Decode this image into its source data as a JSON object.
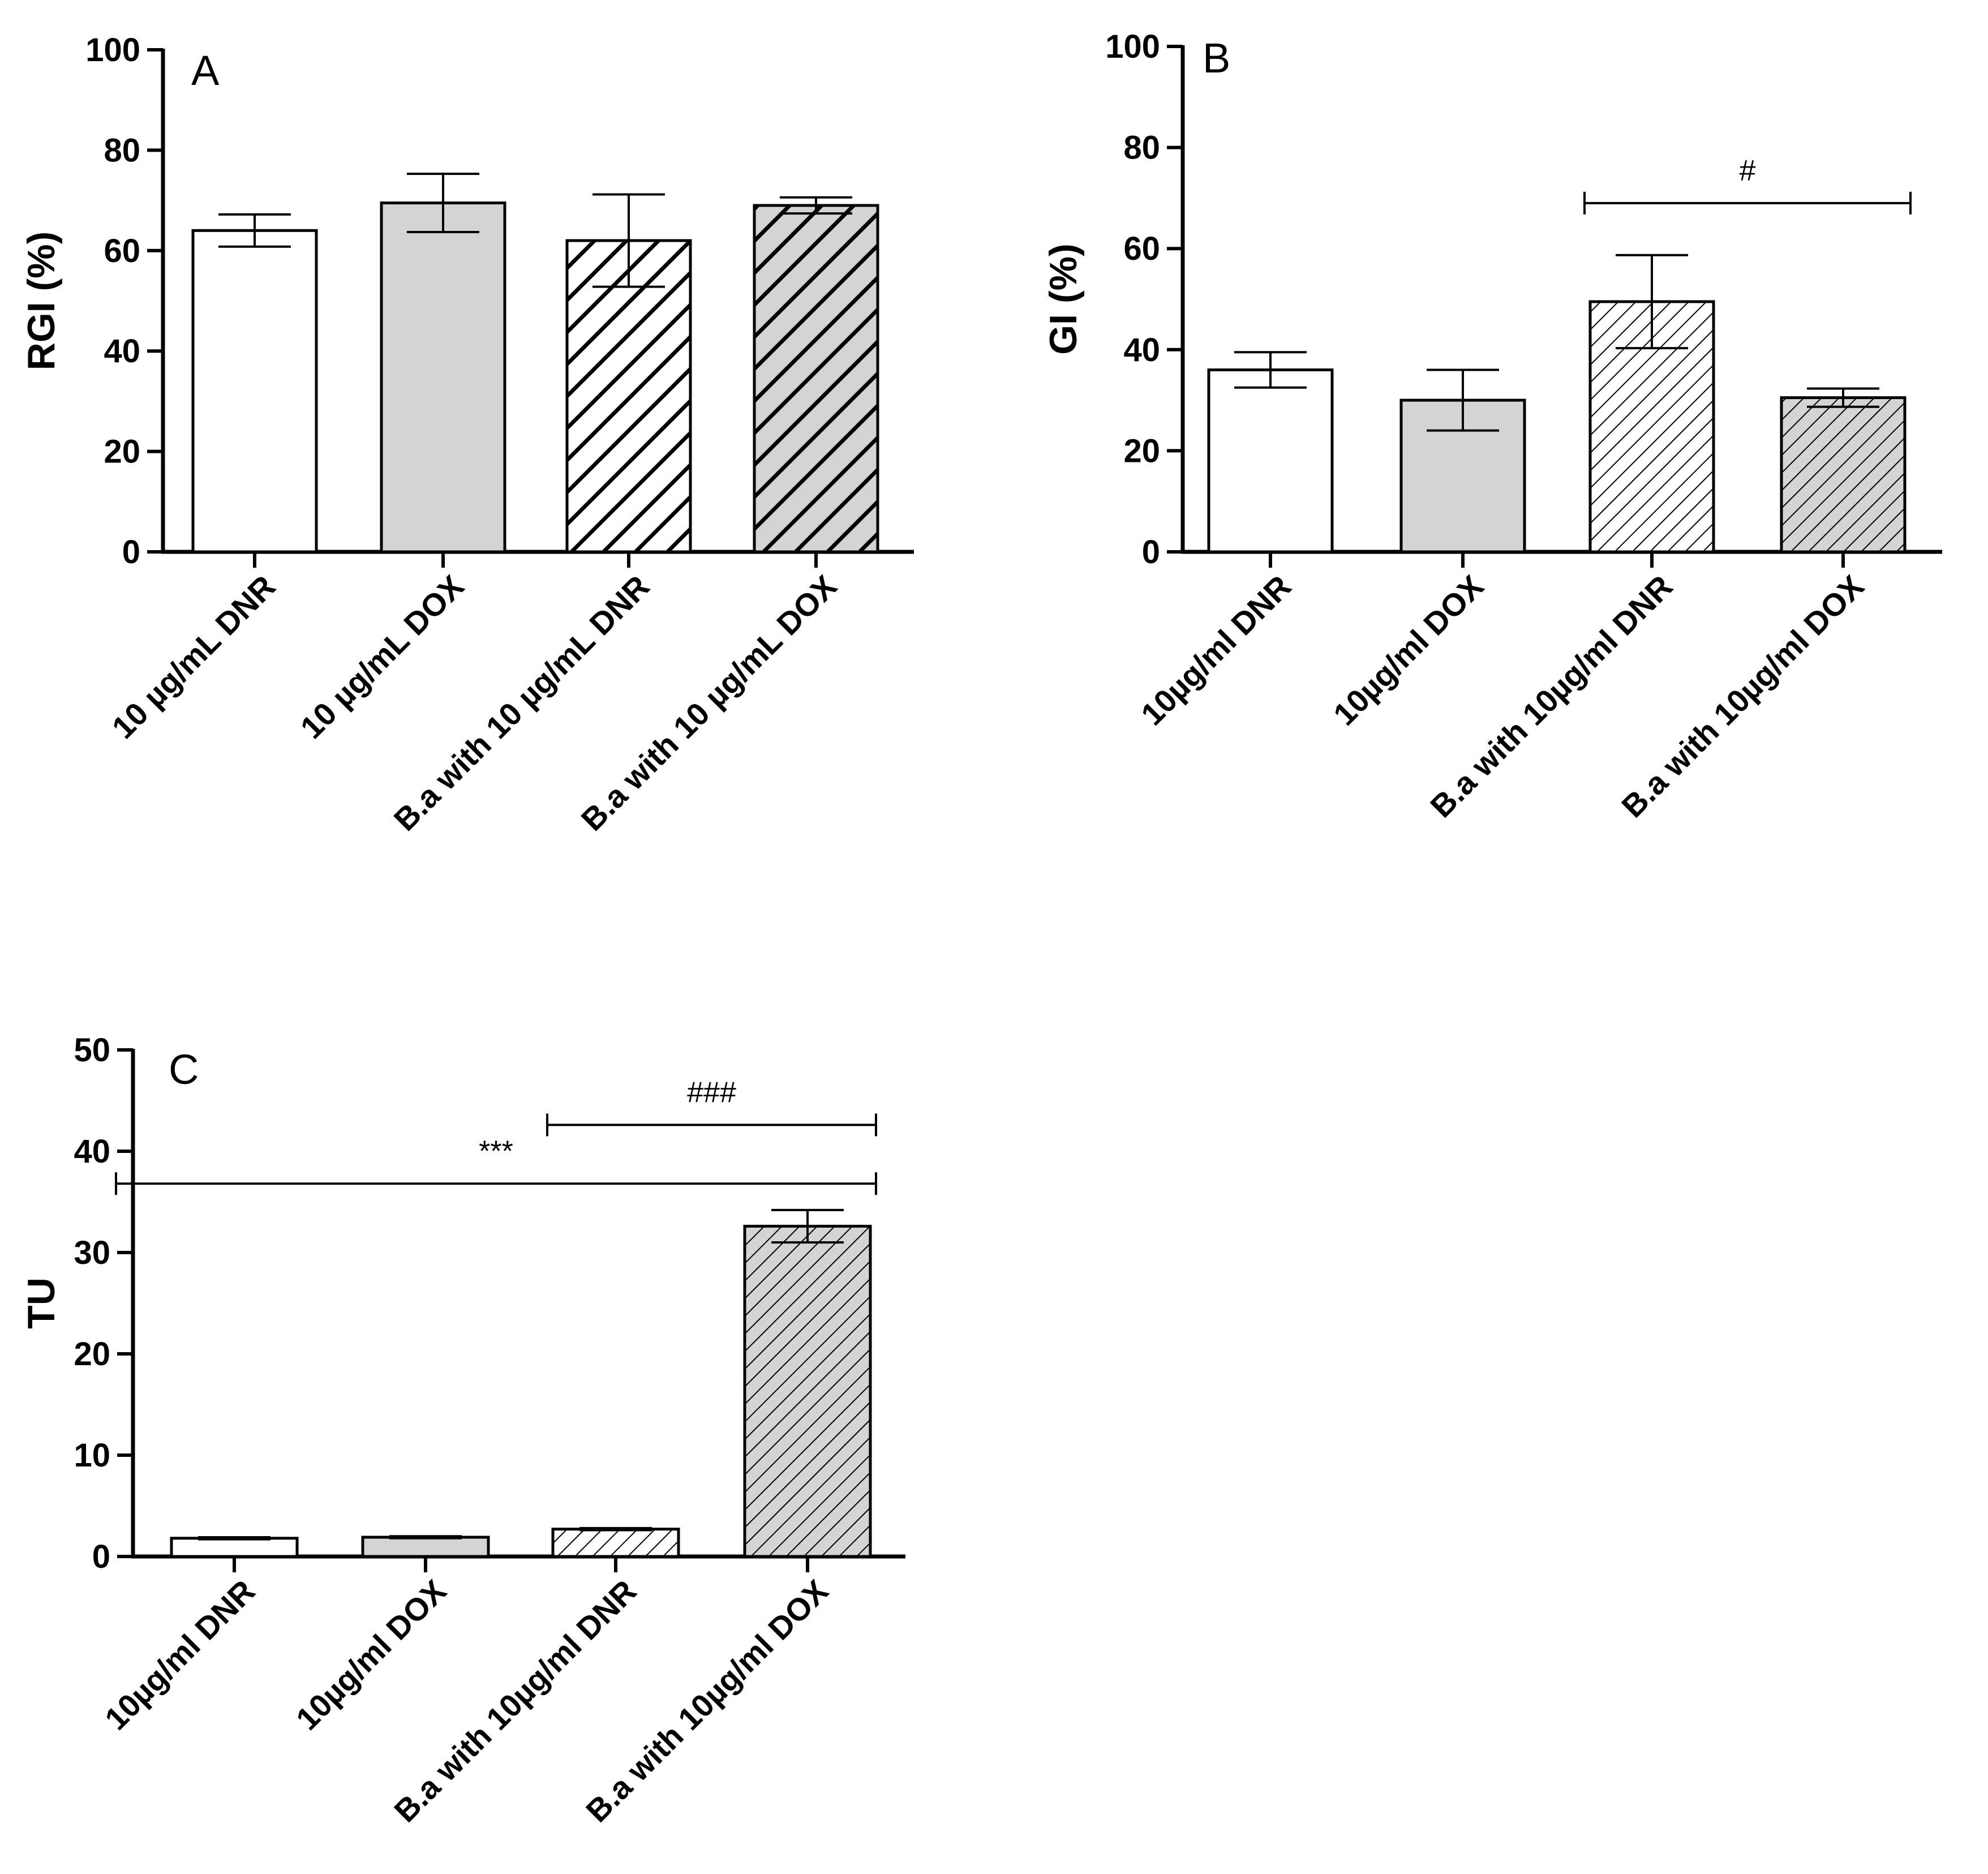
{
  "patterns": {
    "fill_white": "#ffffff",
    "fill_gray": "#d4d4d4",
    "stroke": "#000000"
  },
  "chart_data": [
    {
      "type": "bar",
      "panel": "A",
      "ylabel": "RGI (%)",
      "ylim": [
        0,
        100
      ],
      "yticks": [
        "0",
        "20",
        "40",
        "60",
        "80",
        "100"
      ],
      "categories": [
        "10 µg/mL DNR",
        "10 µg/mL DOX",
        "B.a with 10 µg/mL DNR",
        "B.a with 10 µg/mL DOX"
      ],
      "values": [
        64,
        69.5,
        62,
        69
      ],
      "errors": [
        3.2,
        5.8,
        9.2,
        1.6
      ],
      "fills": [
        "white",
        "gray",
        "hatch-white-wide",
        "hatch-gray-wide"
      ],
      "significance": []
    },
    {
      "type": "bar",
      "panel": "B",
      "ylabel": "GI (%)",
      "ylim": [
        0,
        100
      ],
      "yticks": [
        "0",
        "20",
        "40",
        "60",
        "80",
        "100"
      ],
      "categories": [
        "10µg/ml DNR",
        "10µg/ml DOX",
        "B.a with 10µg/ml DNR",
        "B.a with 10µg/ml DOX"
      ],
      "values": [
        36,
        30,
        49.5,
        30.5
      ],
      "errors": [
        3.5,
        6,
        9.2,
        1.8
      ],
      "fills": [
        "white",
        "gray",
        "hatch-white-fine",
        "hatch-gray-fine"
      ],
      "significance": [
        {
          "label": "#",
          "from": 2,
          "to": 3,
          "y": 69
        }
      ]
    },
    {
      "type": "bar",
      "panel": "C",
      "ylabel": "TU",
      "ylim": [
        0,
        50
      ],
      "yticks": [
        "0",
        "10",
        "20",
        "30",
        "40",
        "50"
      ],
      "categories": [
        "10µg/ml DNR",
        "10µg/ml DOX",
        "B.a with 10µg/ml DNR",
        "B.a with 10µg/ml DOX"
      ],
      "values": [
        1.8,
        1.9,
        2.7,
        32.6
      ],
      "errors": [
        0.1,
        0.1,
        0.1,
        1.6
      ],
      "fills": [
        "white",
        "gray",
        "hatch-white-fine",
        "hatch-gray-fine"
      ],
      "significance": [
        {
          "label": "###",
          "from": 2,
          "to": 3,
          "y": 42.6
        },
        {
          "label": "***",
          "from": 0,
          "to": 3,
          "y": 36.8
        }
      ]
    }
  ]
}
